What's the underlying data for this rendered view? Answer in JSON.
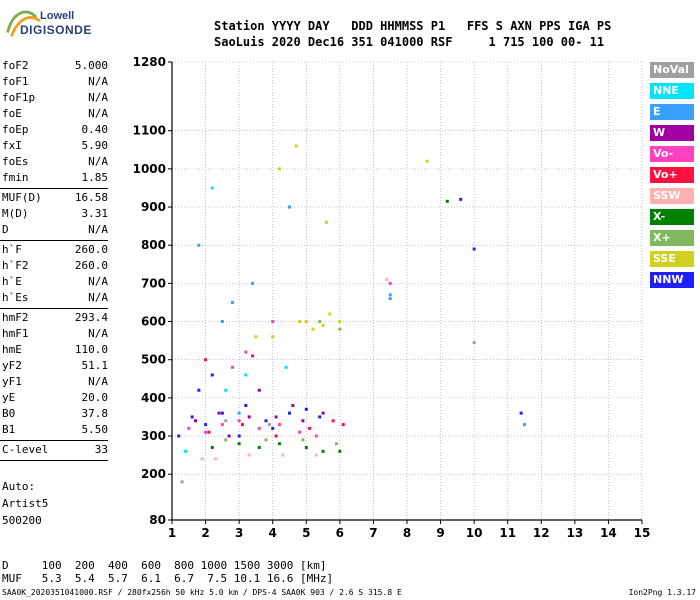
{
  "logo": {
    "line1": "Lowell",
    "line2": "DIGISONDE"
  },
  "header": {
    "line1": "Station YYYY DAY   DDD HHMMSS P1   FFS S AXN PPS IGA PS",
    "line2": "SaoLuis 2020 Dec16 351 041000 RSF     1 715 100 00- 11"
  },
  "params": {
    "group1": [
      {
        "k": "foF2",
        "v": "5.000"
      },
      {
        "k": "foF1",
        "v": "N/A"
      },
      {
        "k": "foF1p",
        "v": "N/A"
      },
      {
        "k": "foE",
        "v": "N/A"
      },
      {
        "k": "foEp",
        "v": "0.40"
      },
      {
        "k": "fxI",
        "v": "5.90"
      },
      {
        "k": "foEs",
        "v": "N/A"
      },
      {
        "k": "fmin",
        "v": "1.85"
      }
    ],
    "group2": [
      {
        "k": "MUF(D)",
        "v": "16.58"
      },
      {
        "k": "M(D)",
        "v": "3.31"
      },
      {
        "k": "D",
        "v": "N/A"
      }
    ],
    "group3": [
      {
        "k": "h`F",
        "v": "260.0"
      },
      {
        "k": "h`F2",
        "v": "260.0"
      },
      {
        "k": "h`E",
        "v": "N/A"
      },
      {
        "k": "h`Es",
        "v": "N/A"
      }
    ],
    "group4": [
      {
        "k": "hmF2",
        "v": "293.4"
      },
      {
        "k": "hmF1",
        "v": "N/A"
      },
      {
        "k": "hmE",
        "v": "110.0"
      },
      {
        "k": "yF2",
        "v": "51.1"
      },
      {
        "k": "yF1",
        "v": "N/A"
      },
      {
        "k": "yE",
        "v": "20.0"
      },
      {
        "k": "B0",
        "v": "37.8"
      },
      {
        "k": "B1",
        "v": "5.50"
      }
    ],
    "group5": [
      {
        "k": "C-level",
        "v": "33"
      }
    ]
  },
  "auto": {
    "line1": "Auto:",
    "line2": "Artist5",
    "line3": "500200"
  },
  "legend": [
    {
      "label": "NoVal",
      "color": "#a0a0a0"
    },
    {
      "label": "NNE",
      "color": "#00e5ff"
    },
    {
      "label": "E",
      "color": "#3aa0ff"
    },
    {
      "label": "W",
      "color": "#a000a0"
    },
    {
      "label": "Vo-",
      "color": "#ff40c0"
    },
    {
      "label": "Vo+",
      "color": "#ff1040"
    },
    {
      "label": "SSW",
      "color": "#ffb0b0"
    },
    {
      "label": "X-",
      "color": "#008000"
    },
    {
      "label": "X+",
      "color": "#80b860"
    },
    {
      "label": "SSE",
      "color": "#d0d020"
    },
    {
      "label": "NNW",
      "color": "#2020ff"
    }
  ],
  "bottom": {
    "line1": "D     100  200  400  600  800 1000 1500 3000 [km]",
    "line2": "MUF   5.3  5.4  5.7  6.1  6.7  7.5 10.1 16.6 [MHz]"
  },
  "footer": {
    "left": "SAA0K_2020351041000.RSF / 280fx256h 50 kHz 5.0 km / DPS-4 SAA0K 903 / 2.6 S 315.8 E",
    "right": "Ion2Png 1.3.17"
  },
  "chart_data": {
    "type": "scatter",
    "title": "",
    "xlabel": "",
    "ylabel": "",
    "xlim": [
      1,
      15
    ],
    "ylim": [
      80,
      1280
    ],
    "x_ticks": [
      1,
      2,
      3,
      4,
      5,
      6,
      7,
      8,
      9,
      10,
      11,
      12,
      13,
      14,
      15
    ],
    "y_ticks": [
      80,
      200,
      300,
      400,
      500,
      600,
      700,
      800,
      900,
      1000,
      1100,
      1280
    ],
    "grid": true,
    "series": [
      {
        "name": "NNW",
        "color": "#2020ff",
        "points": [
          [
            1.2,
            300
          ],
          [
            1.6,
            350
          ],
          [
            2,
            330
          ],
          [
            2.5,
            360
          ],
          [
            3.2,
            380
          ],
          [
            3.8,
            340
          ],
          [
            4.5,
            360
          ],
          [
            5,
            370
          ],
          [
            5.4,
            350
          ],
          [
            1.8,
            420
          ],
          [
            2.2,
            460
          ],
          [
            10,
            790
          ],
          [
            9.6,
            920
          ],
          [
            11.4,
            360
          ],
          [
            3,
            300
          ],
          [
            4,
            320
          ]
        ]
      },
      {
        "name": "Vo-",
        "color": "#ff40c0",
        "points": [
          [
            1.5,
            320
          ],
          [
            2,
            310
          ],
          [
            2.5,
            330
          ],
          [
            3,
            340
          ],
          [
            3.6,
            320
          ],
          [
            4.2,
            330
          ],
          [
            4.8,
            310
          ],
          [
            5.3,
            300
          ],
          [
            3.2,
            520
          ],
          [
            4,
            600
          ],
          [
            2.8,
            480
          ],
          [
            7.5,
            700
          ]
        ]
      },
      {
        "name": "W",
        "color": "#a000a0",
        "points": [
          [
            1.7,
            340
          ],
          [
            2.4,
            360
          ],
          [
            3.3,
            350
          ],
          [
            4.1,
            350
          ],
          [
            4.9,
            340
          ],
          [
            5.5,
            360
          ],
          [
            3.6,
            420
          ],
          [
            2.7,
            300
          ],
          [
            4.6,
            380
          ]
        ]
      },
      {
        "name": "SSE",
        "color": "#d0d020",
        "points": [
          [
            5,
            600
          ],
          [
            5.5,
            590
          ],
          [
            6,
            600
          ],
          [
            5.7,
            620
          ],
          [
            5.2,
            580
          ],
          [
            4.8,
            600
          ],
          [
            3.5,
            560
          ],
          [
            4,
            560
          ],
          [
            8.6,
            1020
          ],
          [
            4.7,
            1060
          ],
          [
            5.6,
            860
          ],
          [
            4.2,
            1000
          ]
        ]
      },
      {
        "name": "X-",
        "color": "#008000",
        "points": [
          [
            2.2,
            270
          ],
          [
            3,
            280
          ],
          [
            3.6,
            270
          ],
          [
            4.2,
            280
          ],
          [
            5,
            270
          ],
          [
            5.5,
            260
          ],
          [
            6,
            260
          ],
          [
            9.2,
            915
          ]
        ]
      },
      {
        "name": "E",
        "color": "#3aa0ff",
        "points": [
          [
            7.5,
            670
          ],
          [
            7.5,
            660
          ],
          [
            1.8,
            800
          ],
          [
            2.5,
            600
          ],
          [
            3.4,
            700
          ],
          [
            4.5,
            900
          ],
          [
            2.8,
            650
          ],
          [
            11.5,
            330
          ],
          [
            3,
            360
          ]
        ]
      },
      {
        "name": "NNE",
        "color": "#00e5ff",
        "points": [
          [
            1.4,
            260
          ],
          [
            2.6,
            420
          ],
          [
            3.2,
            460
          ],
          [
            4.4,
            480
          ],
          [
            2.2,
            950
          ]
        ]
      },
      {
        "name": "Vo+",
        "color": "#ff1040",
        "points": [
          [
            2.1,
            310
          ],
          [
            3.1,
            330
          ],
          [
            4.1,
            300
          ],
          [
            5.1,
            320
          ],
          [
            5.8,
            340
          ],
          [
            6.1,
            330
          ],
          [
            3.4,
            510
          ],
          [
            2,
            500
          ]
        ]
      },
      {
        "name": "X+",
        "color": "#80b860",
        "points": [
          [
            2.6,
            290
          ],
          [
            3.8,
            290
          ],
          [
            4.9,
            290
          ],
          [
            5.9,
            280
          ],
          [
            5.4,
            600
          ],
          [
            6,
            580
          ]
        ]
      },
      {
        "name": "SSW",
        "color": "#ffb0b0",
        "points": [
          [
            2.3,
            240
          ],
          [
            3.3,
            250
          ],
          [
            4.3,
            250
          ],
          [
            5.3,
            250
          ],
          [
            1.9,
            240
          ],
          [
            7.4,
            710
          ]
        ]
      },
      {
        "name": "NoVal",
        "color": "#a0a0a0",
        "points": [
          [
            1.3,
            180
          ],
          [
            2.6,
            340
          ],
          [
            3.9,
            330
          ],
          [
            10,
            545
          ]
        ]
      }
    ]
  }
}
